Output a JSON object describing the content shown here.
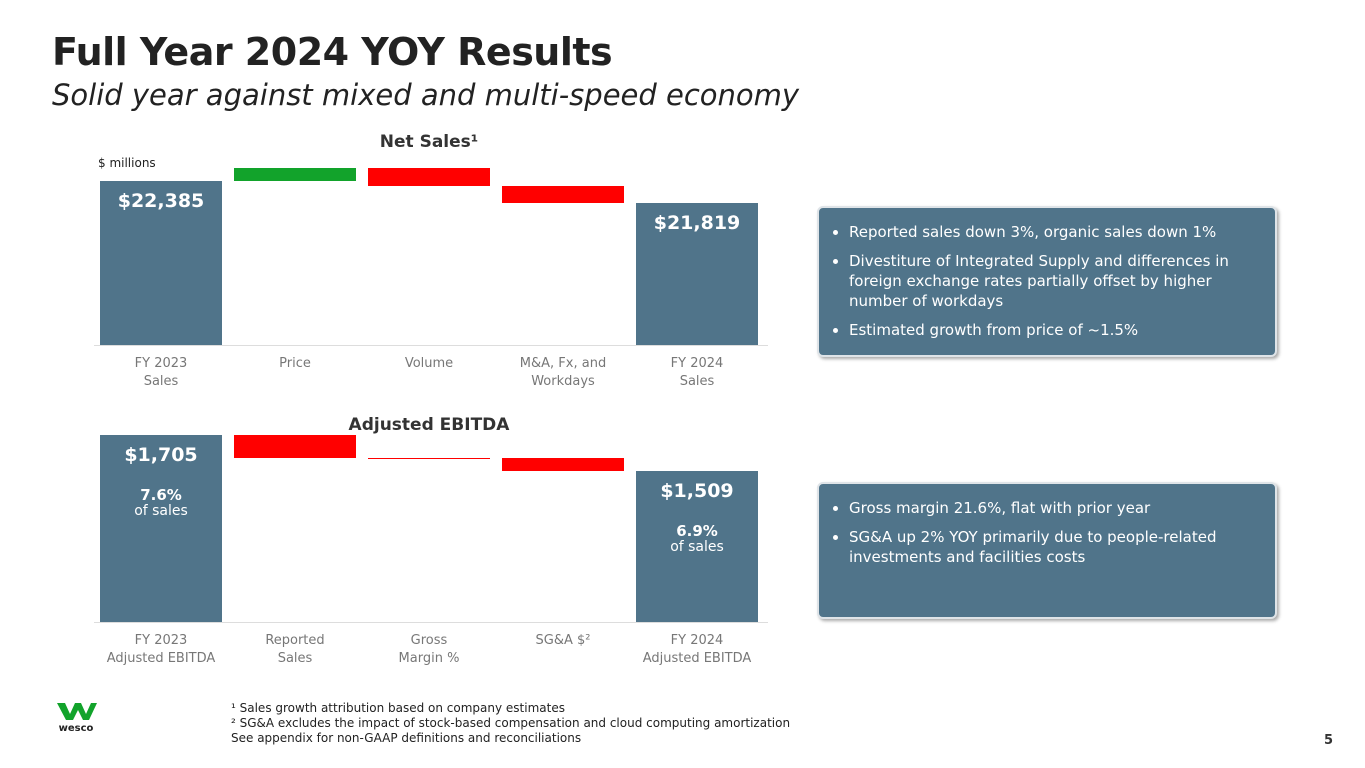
{
  "title": "Full Year 2024 YOY Results",
  "subtitle": "Solid year against mixed and multi-speed economy",
  "chart_data": [
    {
      "type": "waterfall",
      "title": "Net Sales¹",
      "unit_label": "$ millions",
      "categories": [
        "FY 2023\nSales",
        "Price",
        "Volume",
        "M&A, Fx, and\nWorkdays",
        "FY 2024\nSales"
      ],
      "values": [
        22385,
        334,
        -463,
        -437,
        21819
      ],
      "value_labels": [
        "$22,385",
        null,
        null,
        null,
        "$21,819"
      ],
      "colors": {
        "total": "#50748a",
        "increase": "#12a32b",
        "decrease": "#ff0000"
      },
      "ylim": [
        18167,
        23179
      ]
    },
    {
      "type": "waterfall",
      "title": "Adjusted EBITDA",
      "categories": [
        "FY 2023\nAdjusted EBITDA",
        "Reported\nSales",
        "Gross\nMargin %",
        "SG&A $²",
        "FY 2024\nAdjusted EBITDA"
      ],
      "values": [
        1705,
        -125,
        0,
        -71,
        1509
      ],
      "value_labels": [
        "$1,705",
        null,
        null,
        null,
        "$1,509"
      ],
      "total_notes": {
        "start": [
          "7.6%",
          "of sales"
        ],
        "end": [
          "6.9%",
          "of sales"
        ]
      },
      "colors": {
        "total": "#50748a",
        "increase": "#12a32b",
        "decrease": "#ff0000"
      },
      "ylim": [
        687,
        1786
      ]
    }
  ],
  "boxes": [
    [
      "Reported sales down 3%, organic sales down 1%",
      "Divestiture of Integrated Supply and differences in foreign exchange rates partially offset by higher number of workdays",
      "Estimated growth from price of ~1.5%"
    ],
    [
      "Gross margin 21.6%, flat with prior year",
      "SG&A up 2% YOY primarily due to people-related investments and facilities costs"
    ]
  ],
  "footnotes": [
    "¹ Sales growth attribution based on company estimates",
    "² SG&A excludes the impact of stock-based compensation and cloud computing amortization",
    "See appendix for non-GAAP definitions and reconciliations"
  ],
  "logo": "wesco",
  "page_number": "5"
}
